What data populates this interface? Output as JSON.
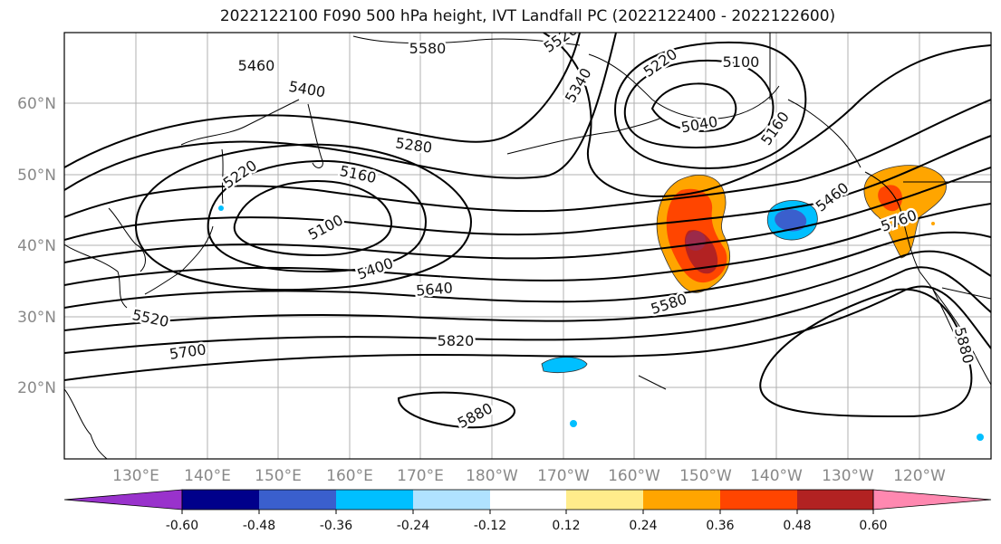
{
  "title": "2022122100 F090 500 hPa height, IVT Landfall PC (2022122400 - 2022122600)",
  "lat_labels": [
    "60°N",
    "50°N",
    "40°N",
    "30°N",
    "20°N"
  ],
  "lon_labels": [
    "130°E",
    "140°E",
    "150°E",
    "160°E",
    "170°E",
    "180°W",
    "170°W",
    "160°W",
    "150°W",
    "140°W",
    "130°W",
    "120°W"
  ],
  "contour_labels": [
    "5580",
    "5520",
    "5220",
    "5100",
    "5460",
    "5400",
    "5340",
    "5040",
    "5160",
    "5280",
    "5160",
    "5220",
    "5100",
    "5460",
    "5760",
    "5400",
    "5640",
    "5520",
    "5580",
    "5700",
    "5820",
    "5880",
    "5880"
  ],
  "colorbar": {
    "colors": [
      "#9932CC",
      "#00008B",
      "#3A5FCD",
      "#00BFFF",
      "#B0E2FF",
      "#FFFFFF",
      "#FFEC8B",
      "#FFA500",
      "#FF4500",
      "#B22222",
      "#FF88B0"
    ],
    "tick_labels": [
      "-0.60",
      "-0.48",
      "-0.36",
      "-0.24",
      "-0.12",
      "0.12",
      "0.24",
      "0.36",
      "0.48",
      "0.60"
    ]
  }
}
